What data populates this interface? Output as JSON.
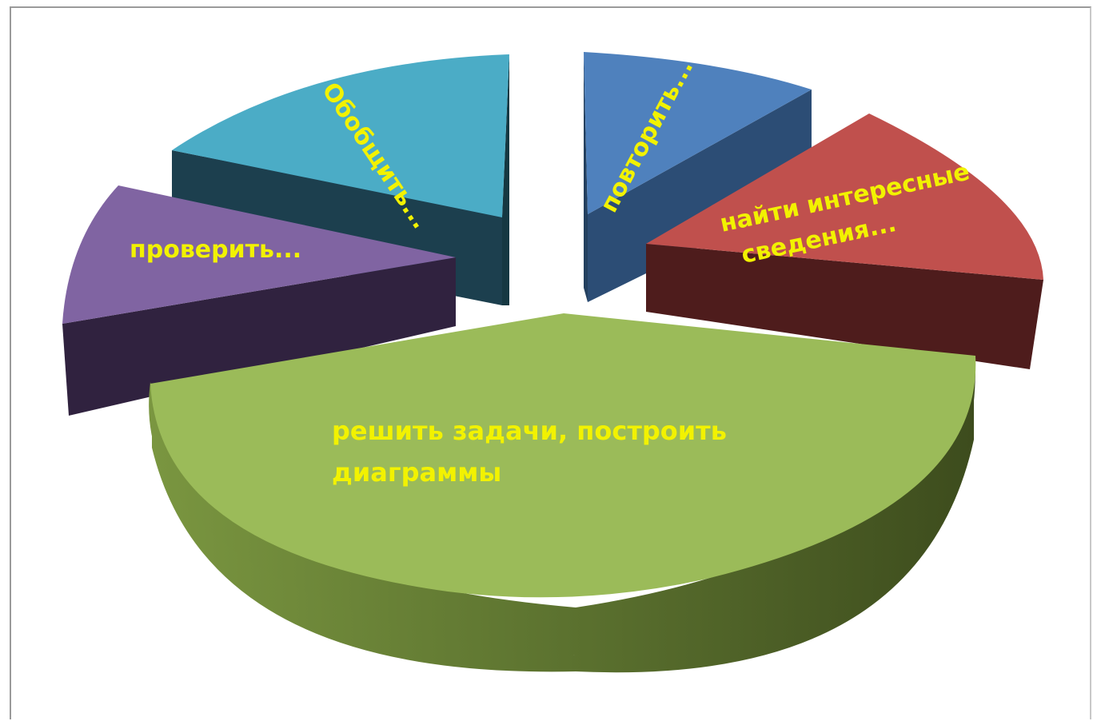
{
  "chart_data": {
    "type": "pie",
    "style": "3d-exploded",
    "slices": [
      {
        "label": "повторить...",
        "value": 11,
        "top_color": "#4f81bd",
        "side_color": "#2c4d75"
      },
      {
        "label_lines": [
          "найти интересные",
          "сведения..."
        ],
        "value": 15,
        "top_color": "#c0504d",
        "side_color": "#4e1c1c"
      },
      {
        "label_lines": [
          "решить задачи, построить",
          "диаграммы"
        ],
        "value": 40,
        "top_color": "#9bbb59",
        "side_color": "#4f6228"
      },
      {
        "label": "проверить...",
        "value": 14,
        "top_color": "#8064a2",
        "side_color": "#30223f"
      },
      {
        "label": "Обобщить...",
        "value": 20,
        "top_color": "#4bacc6",
        "side_color": "#1c3f4e"
      }
    ],
    "legend": "none"
  }
}
